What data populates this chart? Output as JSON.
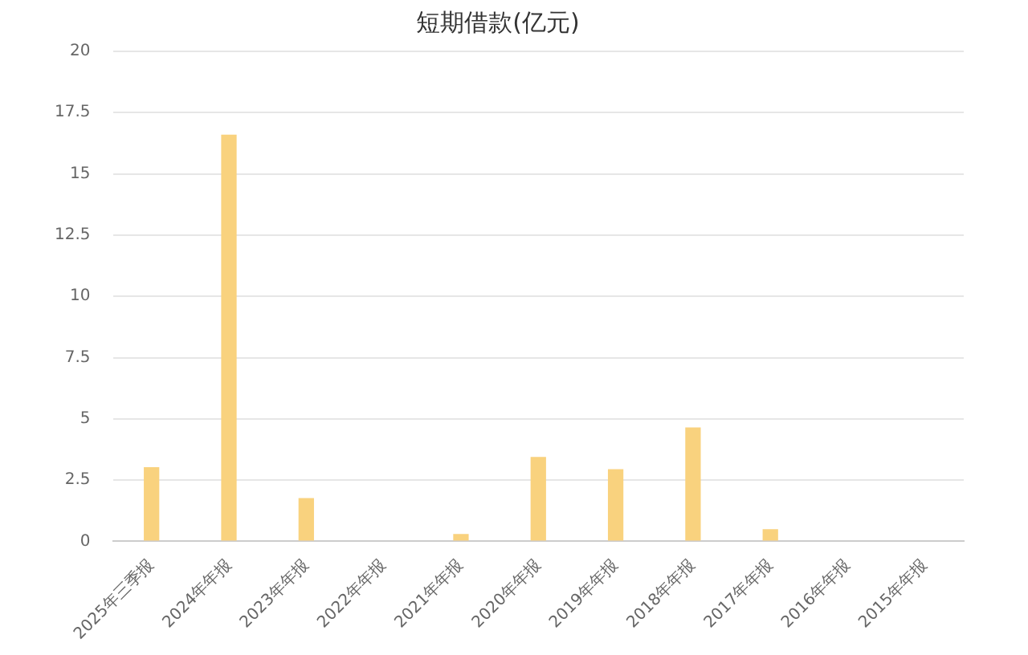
{
  "chart_data": {
    "type": "bar",
    "title": "短期借款(亿元)",
    "categories": [
      "2025年三季报",
      "2024年年报",
      "2023年年报",
      "2022年年报",
      "2021年年报",
      "2020年年报",
      "2019年年报",
      "2018年年报",
      "2017年年报",
      "2016年年报",
      "2015年年报"
    ],
    "series": [
      {
        "color": "#f9d27e",
        "values": [
          3.03,
          16.6,
          1.77,
          null,
          0.3,
          3.45,
          2.95,
          4.65,
          0.5,
          null,
          null
        ]
      }
    ],
    "ylim": [
      0,
      20
    ],
    "yticks": [
      0,
      2.5,
      5,
      7.5,
      10,
      12.5,
      15,
      17.5,
      20
    ],
    "grid": "y",
    "legend": false
  }
}
